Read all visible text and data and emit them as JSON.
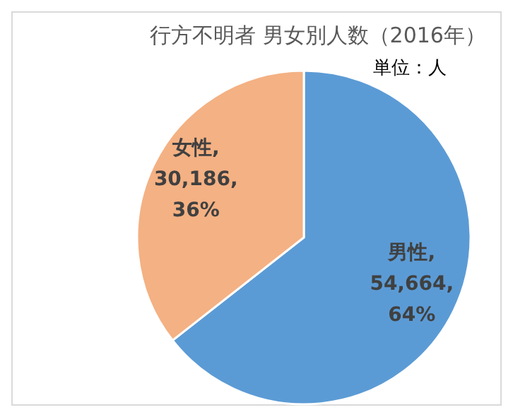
{
  "chart_data": {
    "type": "pie",
    "title": "行方不明者 男女別人数（2016年）",
    "annotations": [
      "単位：人"
    ],
    "categories": [
      "男性",
      "女性"
    ],
    "values": [
      54664,
      30186
    ],
    "colors": [
      "#5b9bd5",
      "#f4b183"
    ],
    "value_labels": [
      ",\n54,664,\n64%",
      ",\n30,186,\n36%"
    ]
  }
}
